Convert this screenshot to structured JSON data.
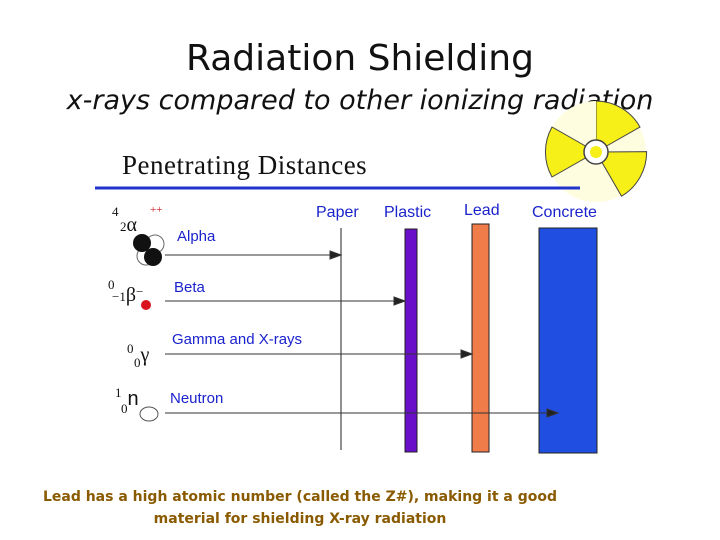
{
  "title": "Radiation Shielding",
  "subtitle": "x-rays compared to other ionizing radiation",
  "diagram": {
    "heading": "Penetrating Distances",
    "materials": {
      "paper": "Paper",
      "plastic": "Plastic",
      "lead": "Lead",
      "concrete": "Concrete"
    },
    "particles": {
      "alpha": {
        "label": "Alpha",
        "mass": "4",
        "charge_num": "2",
        "symbol": "α",
        "sign": "++"
      },
      "beta": {
        "label": "Beta",
        "mass": "0",
        "charge_num": "−1",
        "symbol": "β",
        "sign": "−"
      },
      "gamma": {
        "label": "Gamma and X-rays",
        "mass": "0",
        "charge_num": "0",
        "symbol": "γ"
      },
      "neutron": {
        "label": "Neutron",
        "mass": "1",
        "charge_num": "0",
        "symbol": "n"
      }
    },
    "colors": {
      "plastic": "#6a0fc9",
      "lead": "#f07c4a",
      "concrete": "#1f4ee0",
      "label_text": "#1a22cc",
      "caption_text": "#8a5a00"
    }
  },
  "caption": "Lead has a high atomic number (called the Z#), making it a good material for shielding X-ray radiation"
}
